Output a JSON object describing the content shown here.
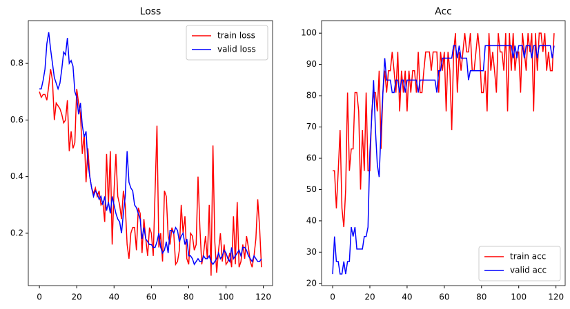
{
  "chart_data": [
    {
      "type": "line",
      "title": "Loss",
      "x": [
        0,
        1,
        2,
        3,
        4,
        5,
        6,
        7,
        8,
        9,
        10,
        11,
        12,
        13,
        14,
        15,
        16,
        17,
        18,
        19,
        20,
        21,
        22,
        23,
        24,
        25,
        26,
        27,
        28,
        29,
        30,
        31,
        32,
        33,
        34,
        35,
        36,
        37,
        38,
        39,
        40,
        41,
        42,
        43,
        44,
        45,
        46,
        47,
        48,
        49,
        50,
        51,
        52,
        53,
        54,
        55,
        56,
        57,
        58,
        59,
        60,
        61,
        62,
        63,
        64,
        65,
        66,
        67,
        68,
        69,
        70,
        71,
        72,
        73,
        74,
        75,
        76,
        77,
        78,
        79,
        80,
        81,
        82,
        83,
        84,
        85,
        86,
        87,
        88,
        89,
        90,
        91,
        92,
        93,
        94,
        95,
        96,
        97,
        98,
        99,
        100,
        101,
        102,
        103,
        104,
        105,
        106,
        107,
        108,
        109,
        110,
        111,
        112,
        113,
        114,
        115,
        116,
        117,
        118,
        119
      ],
      "series": [
        {
          "name": "train loss",
          "color": "#ff0000",
          "values": [
            0.7,
            0.68,
            0.69,
            0.69,
            0.67,
            0.72,
            0.78,
            0.74,
            0.6,
            0.66,
            0.65,
            0.64,
            0.62,
            0.59,
            0.6,
            0.67,
            0.49,
            0.56,
            0.5,
            0.52,
            0.71,
            0.66,
            0.62,
            0.48,
            0.55,
            0.38,
            0.5,
            0.4,
            0.36,
            0.34,
            0.36,
            0.33,
            0.35,
            0.3,
            0.31,
            0.24,
            0.48,
            0.3,
            0.49,
            0.16,
            0.35,
            0.48,
            0.33,
            0.3,
            0.25,
            0.35,
            0.3,
            0.16,
            0.11,
            0.2,
            0.22,
            0.22,
            0.14,
            0.29,
            0.27,
            0.13,
            0.25,
            0.18,
            0.12,
            0.22,
            0.2,
            0.12,
            0.35,
            0.58,
            0.15,
            0.2,
            0.1,
            0.35,
            0.33,
            0.19,
            0.16,
            0.22,
            0.2,
            0.09,
            0.1,
            0.14,
            0.3,
            0.2,
            0.26,
            0.11,
            0.09,
            0.2,
            0.19,
            0.14,
            0.16,
            0.4,
            0.22,
            0.09,
            0.13,
            0.19,
            0.11,
            0.3,
            0.05,
            0.51,
            0.17,
            0.06,
            0.14,
            0.2,
            0.1,
            0.16,
            0.09,
            0.1,
            0.13,
            0.08,
            0.26,
            0.09,
            0.31,
            0.08,
            0.1,
            0.16,
            0.11,
            0.19,
            0.15,
            0.1,
            0.08,
            0.12,
            0.18,
            0.32,
            0.22,
            0.08
          ]
        },
        {
          "name": "valid loss",
          "color": "#0000ff",
          "values": [
            0.71,
            0.71,
            0.74,
            0.78,
            0.87,
            0.91,
            0.85,
            0.8,
            0.75,
            0.73,
            0.71,
            0.73,
            0.78,
            0.84,
            0.83,
            0.89,
            0.8,
            0.81,
            0.79,
            0.7,
            0.68,
            0.62,
            0.66,
            0.58,
            0.54,
            0.56,
            0.45,
            0.4,
            0.36,
            0.33,
            0.35,
            0.34,
            0.32,
            0.33,
            0.3,
            0.33,
            0.28,
            0.31,
            0.27,
            0.33,
            0.3,
            0.27,
            0.25,
            0.24,
            0.2,
            0.27,
            0.33,
            0.49,
            0.38,
            0.36,
            0.35,
            0.3,
            0.29,
            0.27,
            0.25,
            0.18,
            0.22,
            0.18,
            0.17,
            0.16,
            0.16,
            0.15,
            0.15,
            0.17,
            0.2,
            0.15,
            0.13,
            0.14,
            0.17,
            0.13,
            0.21,
            0.21,
            0.2,
            0.22,
            0.21,
            0.17,
            0.19,
            0.2,
            0.16,
            0.18,
            0.12,
            0.12,
            0.11,
            0.09,
            0.1,
            0.11,
            0.1,
            0.1,
            0.12,
            0.11,
            0.11,
            0.12,
            0.1,
            0.09,
            0.1,
            0.11,
            0.13,
            0.11,
            0.12,
            0.14,
            0.13,
            0.11,
            0.1,
            0.15,
            0.11,
            0.12,
            0.13,
            0.14,
            0.12,
            0.15,
            0.15,
            0.14,
            0.12,
            0.11,
            0.1,
            0.12,
            0.11,
            0.1,
            0.1,
            0.11
          ]
        }
      ],
      "xlim": [
        -5.95,
        124.95
      ],
      "ylim": [
        0.015,
        0.951
      ],
      "xticks": [
        0,
        20,
        40,
        60,
        80,
        100,
        120
      ],
      "yticks": [
        0.2,
        0.4,
        0.6,
        0.8
      ],
      "legend": "upper right"
    },
    {
      "type": "line",
      "title": "Acc",
      "x": [
        0,
        1,
        2,
        3,
        4,
        5,
        6,
        7,
        8,
        9,
        10,
        11,
        12,
        13,
        14,
        15,
        16,
        17,
        18,
        19,
        20,
        21,
        22,
        23,
        24,
        25,
        26,
        27,
        28,
        29,
        30,
        31,
        32,
        33,
        34,
        35,
        36,
        37,
        38,
        39,
        40,
        41,
        42,
        43,
        44,
        45,
        46,
        47,
        48,
        49,
        50,
        51,
        52,
        53,
        54,
        55,
        56,
        57,
        58,
        59,
        60,
        61,
        62,
        63,
        64,
        65,
        66,
        67,
        68,
        69,
        70,
        71,
        72,
        73,
        74,
        75,
        76,
        77,
        78,
        79,
        80,
        81,
        82,
        83,
        84,
        85,
        86,
        87,
        88,
        89,
        90,
        91,
        92,
        93,
        94,
        95,
        96,
        97,
        98,
        99,
        100,
        101,
        102,
        103,
        104,
        105,
        106,
        107,
        108,
        109,
        110,
        111,
        112,
        113,
        114,
        115,
        116,
        117,
        118,
        119
      ],
      "series": [
        {
          "name": "train acc",
          "color": "#ff0000",
          "values": [
            56,
            56,
            44,
            56,
            69,
            44,
            38,
            50,
            81,
            56,
            63,
            63,
            81,
            81,
            75,
            50,
            69,
            56,
            81,
            56,
            56,
            75,
            81,
            81,
            75,
            88,
            63,
            81,
            88,
            81,
            88,
            88,
            94,
            88,
            81,
            94,
            75,
            88,
            81,
            88,
            75,
            88,
            81,
            88,
            88,
            81,
            94,
            81,
            81,
            88,
            94,
            94,
            94,
            88,
            94,
            94,
            94,
            81,
            94,
            88,
            94,
            75,
            94,
            88,
            69,
            94,
            100,
            81,
            94,
            88,
            94,
            100,
            94,
            94,
            100,
            88,
            88,
            94,
            100,
            94,
            81,
            81,
            88,
            75,
            100,
            88,
            94,
            88,
            81,
            100,
            94,
            94,
            88,
            100,
            75,
            100,
            88,
            100,
            88,
            94,
            94,
            81,
            100,
            94,
            88,
            100,
            94,
            100,
            75,
            100,
            88,
            100,
            100,
            94,
            100,
            88,
            94,
            88,
            88,
            100
          ]
        },
        {
          "name": "valid acc",
          "color": "#0000ff",
          "values": [
            23,
            35,
            27,
            27,
            23,
            23,
            27,
            23,
            27,
            27,
            38,
            35,
            38,
            31,
            31,
            31,
            31,
            35,
            35,
            38,
            62,
            73,
            85,
            69,
            58,
            54,
            69,
            81,
            92,
            85,
            85,
            85,
            81,
            81,
            85,
            85,
            81,
            85,
            85,
            81,
            85,
            85,
            85,
            85,
            85,
            85,
            81,
            85,
            85,
            85,
            85,
            85,
            85,
            85,
            85,
            85,
            81,
            88,
            88,
            92,
            92,
            92,
            92,
            92,
            92,
            96,
            96,
            92,
            96,
            92,
            92,
            92,
            92,
            85,
            88,
            88,
            88,
            88,
            88,
            88,
            88,
            88,
            96,
            96,
            96,
            96,
            96,
            96,
            96,
            96,
            96,
            96,
            96,
            96,
            96,
            96,
            96,
            92,
            96,
            92,
            96,
            96,
            96,
            92,
            96,
            96,
            96,
            92,
            96,
            96,
            92,
            96,
            96,
            96,
            96,
            96,
            96,
            96,
            92,
            96
          ]
        }
      ],
      "xlim": [
        -5.95,
        124.95
      ],
      "ylim": [
        19.3,
        104.0
      ],
      "xticks": [
        0,
        20,
        40,
        60,
        80,
        100,
        120
      ],
      "yticks": [
        20,
        30,
        40,
        50,
        60,
        70,
        80,
        90,
        100
      ],
      "legend": "lower right"
    }
  ]
}
